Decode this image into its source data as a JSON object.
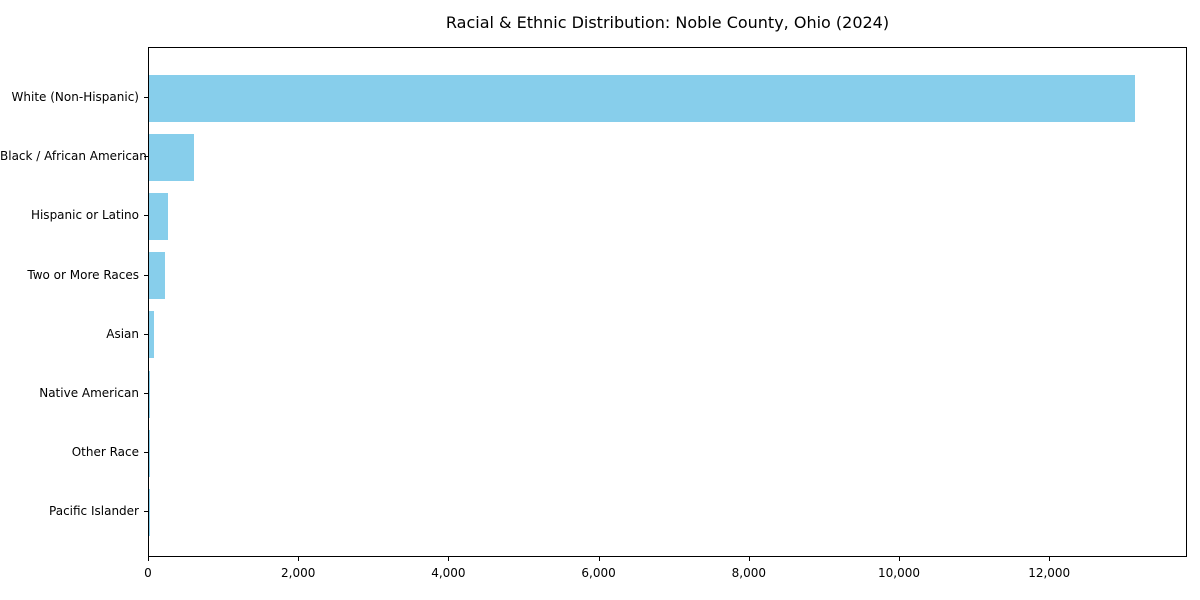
{
  "chart_data": {
    "type": "bar",
    "orientation": "horizontal",
    "title": "Racial & Ethnic Distribution: Noble County, Ohio (2024)",
    "categories": [
      "White (Non-Hispanic)",
      "Black / African American",
      "Hispanic or Latino",
      "Two or More Races",
      "Asian",
      "Native American",
      "Other Race",
      "Pacific Islander"
    ],
    "values": [
      13130,
      600,
      255,
      215,
      70,
      15,
      8,
      3
    ],
    "bar_color": "#87CEEB",
    "title_color": "#000000",
    "axis_color": "#000000",
    "xlabel": "",
    "ylabel": "",
    "xlim": [
      0,
      13835
    ],
    "x_ticks": [
      0,
      2000,
      4000,
      6000,
      8000,
      10000,
      12000
    ],
    "x_tick_labels": [
      "0",
      "2,000",
      "4,000",
      "6,000",
      "8,000",
      "10,000",
      "12,000"
    ],
    "grid": false,
    "legend": false,
    "sort_order": "descending"
  }
}
